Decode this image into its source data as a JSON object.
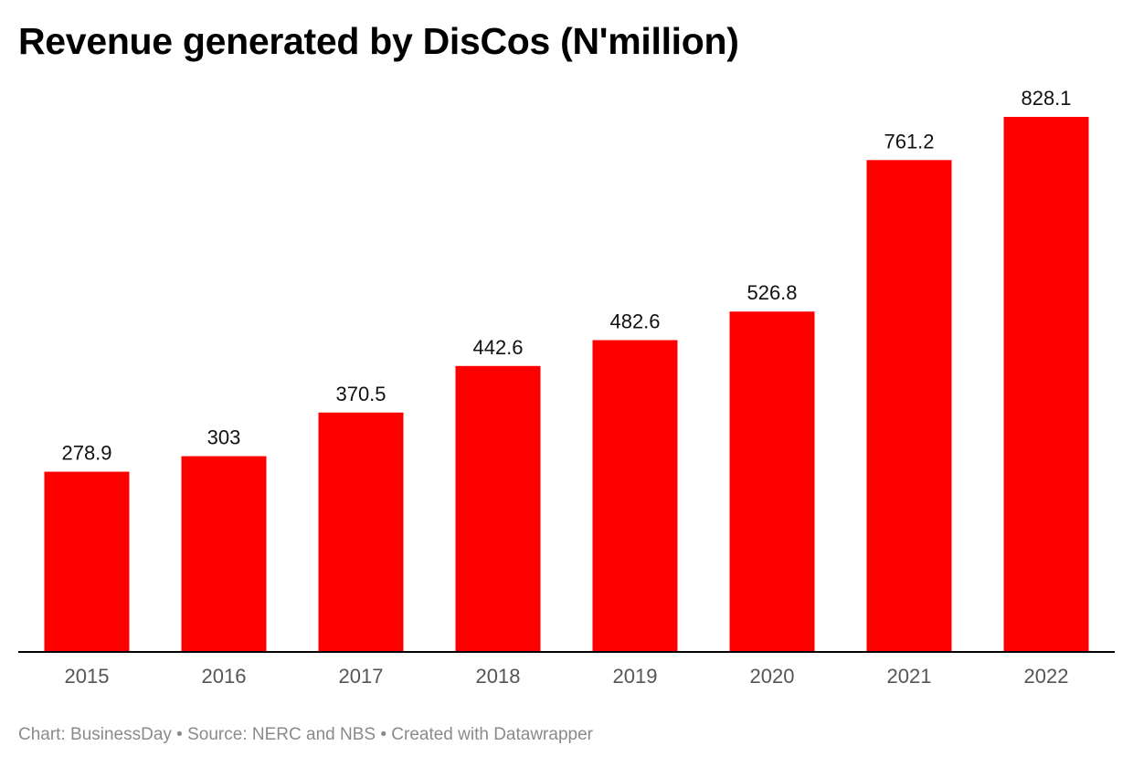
{
  "chart_data": {
    "type": "bar",
    "title": "Revenue generated by DisCos (N'million)",
    "categories": [
      "2015",
      "2016",
      "2017",
      "2018",
      "2019",
      "2020",
      "2021",
      "2022"
    ],
    "values": [
      278.9,
      303,
      370.5,
      442.6,
      482.6,
      526.8,
      761.2,
      828.1
    ],
    "value_labels": [
      "278.9",
      "303",
      "370.5",
      "442.6",
      "482.6",
      "526.8",
      "761.2",
      "828.1"
    ],
    "xlabel": "",
    "ylabel": "",
    "ylim": [
      0,
      828.1
    ],
    "grid": false,
    "bar_color": "#ff0000",
    "axis_color": "#000000"
  },
  "footer": {
    "chart_credit": "Chart: BusinessDay",
    "source": "Source: NERC and NBS",
    "created_with": "Created with Datawrapper",
    "separator": " • "
  }
}
